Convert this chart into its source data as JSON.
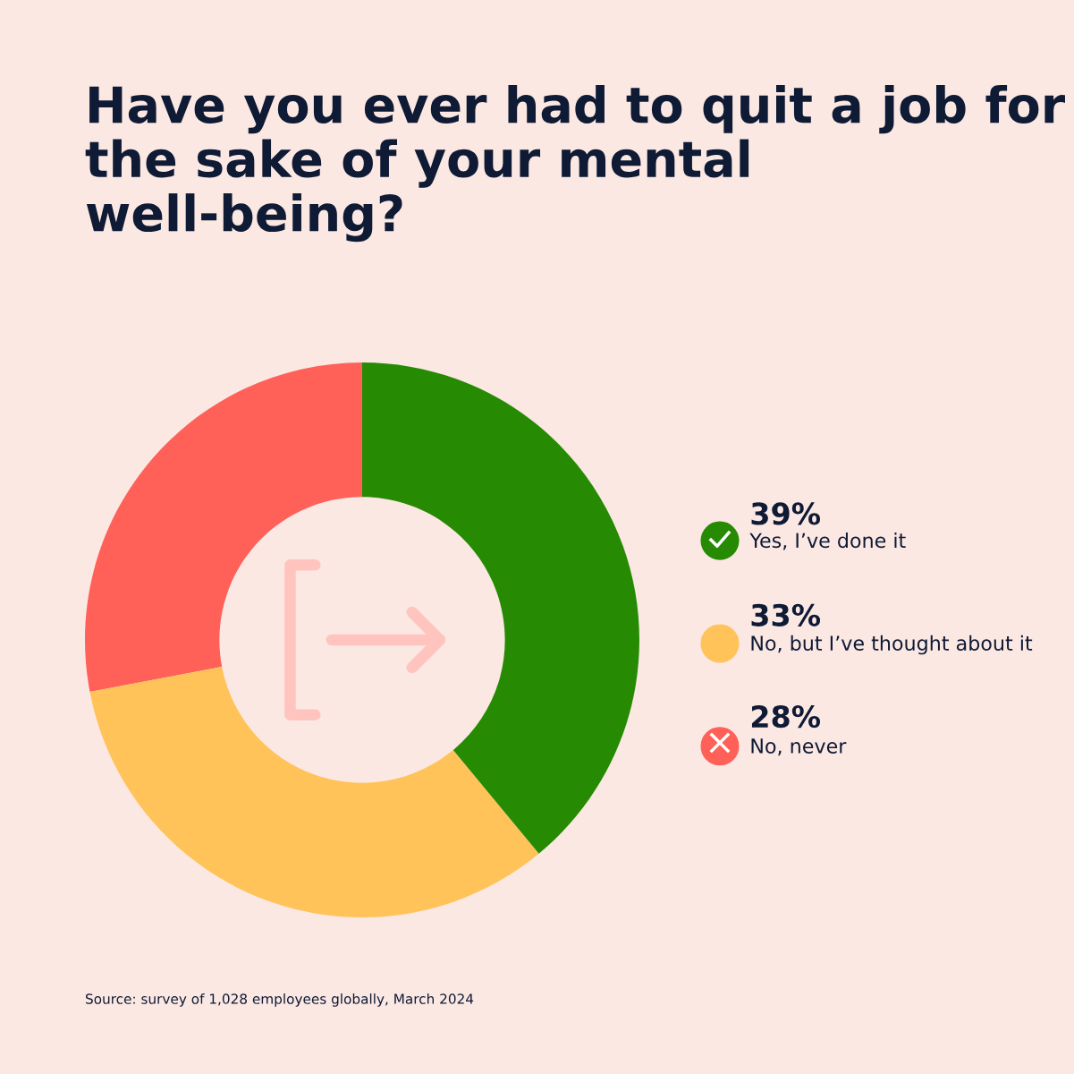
{
  "chart_data": {
    "type": "donut",
    "title": "Have you ever had to quit a job for the sake of your mental well-being?",
    "categories": [
      "No, never",
      "No, but I’ve thought about it",
      "Yes, I’ve done it"
    ],
    "values": [
      28,
      33,
      39
    ],
    "value_labels": [
      "28%",
      "33%",
      "39%"
    ],
    "colors": [
      "#ff6159",
      "#ffc35a",
      "#268a03"
    ],
    "legend": "right",
    "annotations": [
      "Source: survey of 1,028 employees globally, March 2024"
    ]
  }
}
